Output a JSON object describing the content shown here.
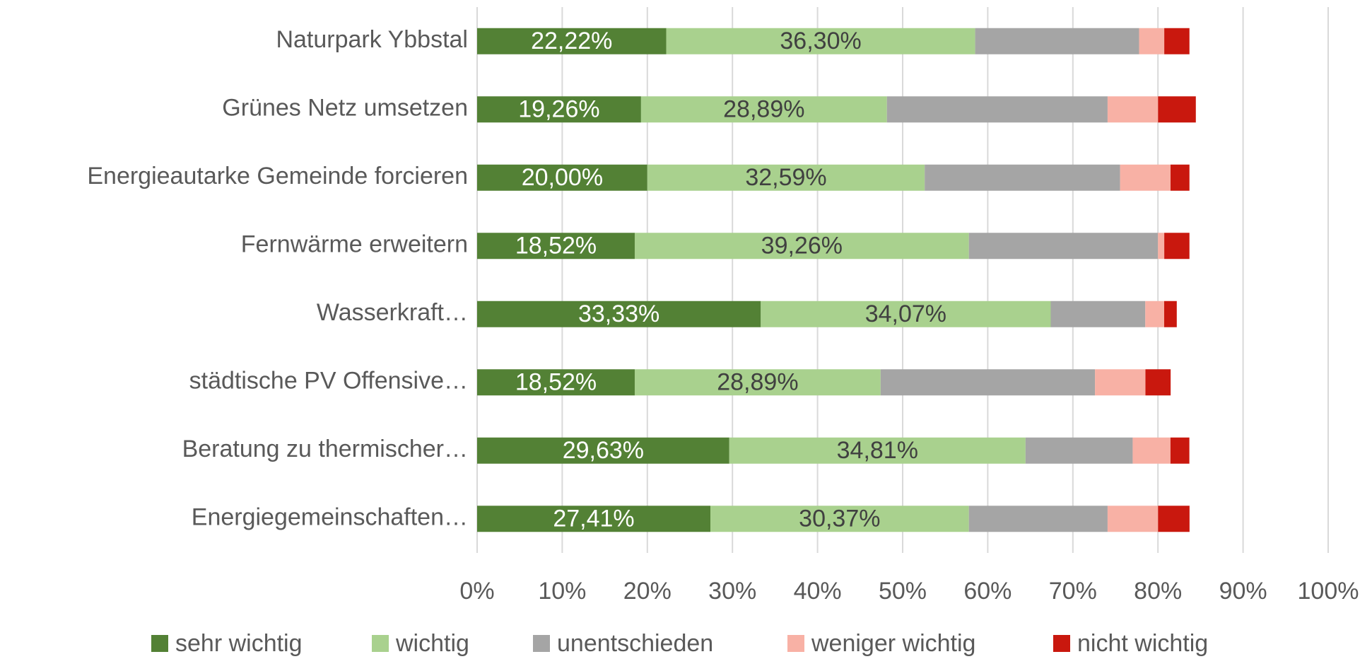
{
  "chart_data": {
    "type": "stacked_barh",
    "categories": [
      "Naturpark Ybbstal",
      "Grünes Netz umsetzen",
      "Energieautarke Gemeinde forcieren",
      "Fernwärme erweitern",
      "Wasserkraft…",
      "städtische PV Offensive…",
      "Beratung zu thermischer…",
      "Energiegemeinschaften…"
    ],
    "series": [
      {
        "name": "sehr wichtig",
        "color": "#538135",
        "label_color": "#ffffff",
        "values": [
          22.22,
          19.26,
          20.0,
          18.52,
          33.33,
          18.52,
          29.63,
          27.41
        ],
        "value_labels": [
          "22,22%",
          "19,26%",
          "20,00%",
          "18,52%",
          "33,33%",
          "18,52%",
          "29,63%",
          "27,41%"
        ]
      },
      {
        "name": "wichtig",
        "color": "#a9d18e",
        "label_color": "#404040",
        "values": [
          36.3,
          28.89,
          32.59,
          39.26,
          34.07,
          28.89,
          34.81,
          30.37
        ],
        "value_labels": [
          "36,30%",
          "28,89%",
          "32,59%",
          "39,26%",
          "34,07%",
          "28,89%",
          "34,81%",
          "30,37%"
        ]
      },
      {
        "name": "unentschieden",
        "color": "#a5a5a5",
        "values": [
          19.26,
          25.93,
          22.96,
          22.22,
          11.11,
          25.19,
          12.59,
          16.3
        ]
      },
      {
        "name": "weniger wichtig",
        "color": "#f8b1a5",
        "values": [
          2.96,
          5.93,
          5.93,
          0.74,
          2.22,
          5.93,
          4.44,
          5.93
        ]
      },
      {
        "name": "nicht wichtig",
        "color": "#c9180e",
        "values": [
          2.96,
          4.44,
          2.22,
          2.96,
          1.48,
          2.96,
          2.22,
          3.7
        ]
      }
    ],
    "xlim": [
      0,
      100
    ],
    "xticks": [
      {
        "value": 0,
        "label": "0%"
      },
      {
        "value": 10,
        "label": "10%"
      },
      {
        "value": 20,
        "label": "20%"
      },
      {
        "value": 30,
        "label": "30%"
      },
      {
        "value": 40,
        "label": "40%"
      },
      {
        "value": 50,
        "label": "50%"
      },
      {
        "value": 60,
        "label": "60%"
      },
      {
        "value": 70,
        "label": "70%"
      },
      {
        "value": 80,
        "label": "80%"
      },
      {
        "value": 90,
        "label": "90%"
      },
      {
        "value": 100,
        "label": "100%"
      }
    ],
    "grid": true,
    "legend": "bottom"
  }
}
